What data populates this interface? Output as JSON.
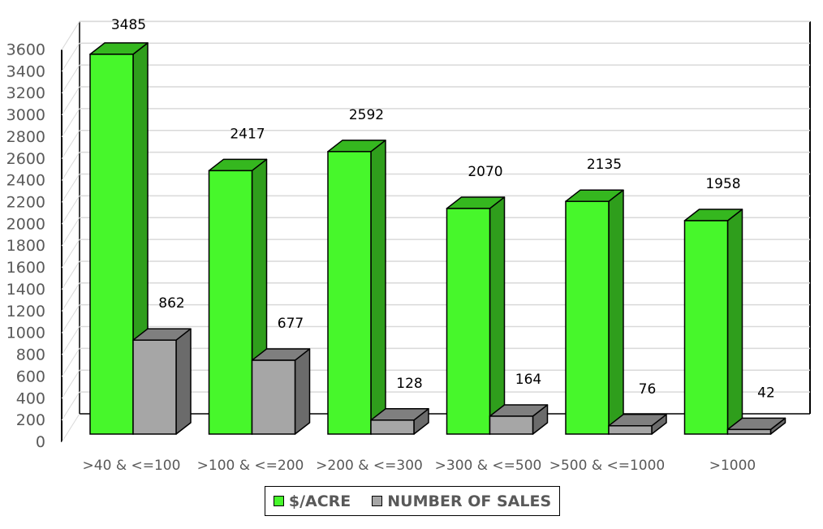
{
  "chart_data": {
    "type": "bar",
    "subtype": "3d-clustered-column",
    "title": "",
    "xlabel": "",
    "ylabel": "",
    "categories": [
      ">40 & <=100",
      ">100 & <=200",
      ">200 & <=300",
      ">300 & <=500",
      ">500 & <=1000",
      ">1000"
    ],
    "series": [
      {
        "name": "$/ACRE",
        "color": "#47f72b",
        "side_color": "#2f9e1c",
        "top_color": "#35b71f",
        "values": [
          3485,
          2417,
          2592,
          2070,
          2135,
          1958
        ]
      },
      {
        "name": "NUMBER OF SALES",
        "color": "#a6a6a6",
        "side_color": "#6b6b6b",
        "top_color": "#7f7f7f",
        "values": [
          862,
          677,
          128,
          164,
          76,
          42
        ]
      }
    ],
    "ylim": [
      0,
      3600
    ],
    "yticks": [
      0,
      200,
      400,
      600,
      800,
      1000,
      1200,
      1400,
      1600,
      1800,
      2000,
      2200,
      2400,
      2600,
      2800,
      3000,
      3200,
      3400,
      3600
    ],
    "grid": true,
    "data_labels": true,
    "legend_position": "bottom"
  },
  "legend": {
    "items": [
      {
        "label": "$/ACRE",
        "color": "#47f72b"
      },
      {
        "label": "NUMBER OF SALES",
        "color": "#a6a6a6"
      }
    ]
  }
}
